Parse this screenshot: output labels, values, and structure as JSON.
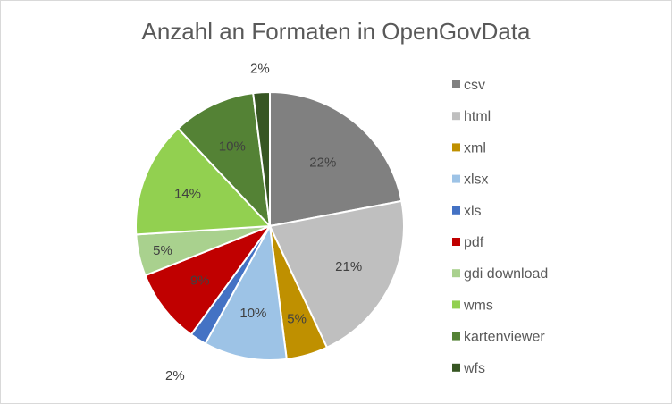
{
  "chart_data": {
    "type": "pie",
    "title": "Anzahl an Formaten in OpenGovData",
    "legend_position": "right",
    "slices": [
      {
        "name": "csv",
        "value": 22,
        "label": "22%",
        "color": "#808080"
      },
      {
        "name": "html",
        "value": 21,
        "label": "21%",
        "color": "#bfbfbf"
      },
      {
        "name": "xml",
        "value": 5,
        "label": "5%",
        "color": "#bf9000"
      },
      {
        "name": "xlsx",
        "value": 10,
        "label": "10%",
        "color": "#9dc3e6"
      },
      {
        "name": "xls",
        "value": 2,
        "label": "2%",
        "color": "#4472c4"
      },
      {
        "name": "pdf",
        "value": 9,
        "label": "9%",
        "color": "#c00000"
      },
      {
        "name": "gdi download",
        "value": 5,
        "label": "5%",
        "color": "#a9d18e"
      },
      {
        "name": "wms",
        "value": 14,
        "label": "14%",
        "color": "#92d050"
      },
      {
        "name": "kartenviewer",
        "value": 10,
        "label": "10%",
        "color": "#548235"
      },
      {
        "name": "wfs",
        "value": 2,
        "label": "2%",
        "color": "#375623"
      }
    ]
  }
}
